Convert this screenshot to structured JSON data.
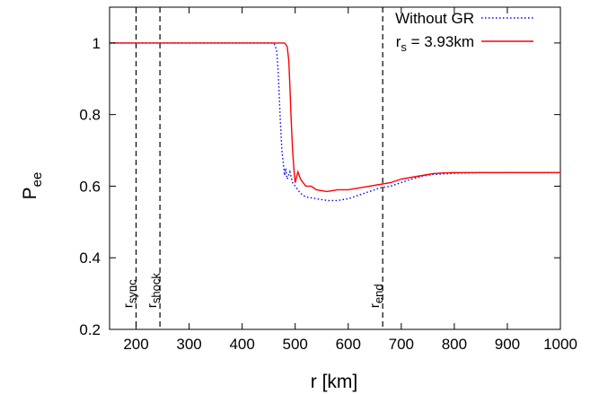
{
  "chart_data": {
    "type": "line",
    "xlabel": "r [km]",
    "ylabel": {
      "base": "P",
      "sub": "ee"
    },
    "xlim": [
      150,
      1000
    ],
    "ylim": [
      0.2,
      1.1
    ],
    "xticks": [
      200,
      300,
      400,
      500,
      600,
      700,
      800,
      900,
      1000
    ],
    "yticks": [
      0.2,
      0.4,
      0.6,
      0.8,
      1.0
    ],
    "ytick_labels": [
      "0.2",
      "0.4",
      "0.6",
      "0.8",
      "1"
    ],
    "grid": false,
    "legend_position": "top-right",
    "series": [
      {
        "name": "Without GR",
        "color": "#0000ff",
        "style": "dotted",
        "x": [
          150,
          200,
          300,
          400,
          460,
          465,
          468,
          470,
          472,
          475,
          478,
          480,
          482,
          485,
          490,
          495,
          500,
          510,
          520,
          540,
          560,
          580,
          600,
          620,
          640,
          660,
          680,
          700,
          720,
          740,
          760,
          800,
          850,
          900,
          950,
          1000
        ],
        "y": [
          1.0,
          1.0,
          1.0,
          1.0,
          1.0,
          0.98,
          0.92,
          0.85,
          0.78,
          0.7,
          0.66,
          0.63,
          0.65,
          0.62,
          0.64,
          0.61,
          0.6,
          0.58,
          0.57,
          0.565,
          0.56,
          0.56,
          0.565,
          0.575,
          0.585,
          0.595,
          0.6,
          0.61,
          0.62,
          0.628,
          0.633,
          0.636,
          0.638,
          0.638,
          0.638,
          0.638
        ]
      },
      {
        "name": "r_s = 3.93km",
        "legend_label": {
          "base": "r",
          "sub": "s",
          "rest": " = 3.93km"
        },
        "color": "#ff0000",
        "style": "solid",
        "x": [
          150,
          200,
          300,
          400,
          480,
          485,
          488,
          490,
          492,
          495,
          498,
          500,
          505,
          510,
          520,
          530,
          540,
          560,
          580,
          600,
          620,
          640,
          660,
          680,
          700,
          720,
          740,
          760,
          780,
          800,
          850,
          900,
          950,
          1000
        ],
        "y": [
          1.0,
          1.0,
          1.0,
          1.0,
          1.0,
          0.99,
          0.95,
          0.88,
          0.8,
          0.7,
          0.64,
          0.61,
          0.64,
          0.62,
          0.6,
          0.6,
          0.59,
          0.585,
          0.59,
          0.59,
          0.595,
          0.6,
          0.605,
          0.61,
          0.62,
          0.625,
          0.63,
          0.635,
          0.637,
          0.638,
          0.638,
          0.638,
          0.638,
          0.638
        ]
      }
    ],
    "vlines": [
      {
        "x": 200,
        "label_base": "r",
        "label_sub": "sync"
      },
      {
        "x": 245,
        "label_base": "r",
        "label_sub": "shock"
      },
      {
        "x": 665,
        "label_base": "r",
        "label_sub": "end"
      }
    ]
  }
}
